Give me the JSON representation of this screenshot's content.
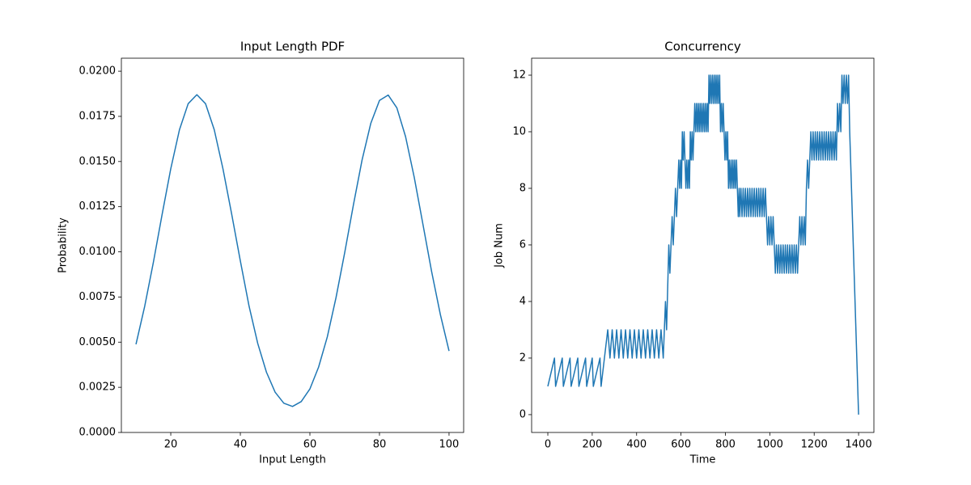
{
  "chart_data": [
    {
      "type": "line",
      "title": "Input Length PDF",
      "x_label": "Input Length",
      "y_label": "Probability",
      "color": "#1f77b4",
      "x": [
        10,
        12.5,
        15,
        17.5,
        20,
        22.5,
        25,
        27.5,
        30,
        32.5,
        35,
        37.5,
        40,
        42.5,
        45,
        47.5,
        50,
        52.5,
        55,
        57.5,
        60,
        62.5,
        65,
        67.5,
        70,
        72.5,
        75,
        77.5,
        80,
        82.5,
        85,
        87.5,
        90,
        92.5,
        95,
        97.5,
        100
      ],
      "values": [
        0.00488,
        0.00698,
        0.00942,
        0.01206,
        0.0146,
        0.01676,
        0.0182,
        0.0187,
        0.0182,
        0.01676,
        0.0146,
        0.0121,
        0.0095,
        0.007,
        0.00493,
        0.00334,
        0.00223,
        0.00162,
        0.00144,
        0.00171,
        0.00241,
        0.00362,
        0.00529,
        0.00746,
        0.00995,
        0.01259,
        0.01509,
        0.01711,
        0.01838,
        0.01868,
        0.01797,
        0.01638,
        0.01412,
        0.01152,
        0.0089,
        0.00653,
        0.00451
      ],
      "xlim": [
        5.8,
        104.2
      ],
      "ylim": [
        0,
        0.02072
      ],
      "xticks": [
        20,
        40,
        60,
        80,
        100
      ],
      "yticks": [
        {
          "value": 0,
          "label": "0.0000"
        },
        {
          "value": 0.0025,
          "label": "0.0025"
        },
        {
          "value": 0.005,
          "label": "0.0050"
        },
        {
          "value": 0.0075,
          "label": "0.0075"
        },
        {
          "value": 0.01,
          "label": "0.0100"
        },
        {
          "value": 0.0125,
          "label": "0.0125"
        },
        {
          "value": 0.015,
          "label": "0.0150"
        },
        {
          "value": 0.0175,
          "label": "0.0175"
        },
        {
          "value": 0.02,
          "label": "0.0200"
        }
      ]
    },
    {
      "type": "line",
      "title": "Concurrency",
      "x_label": "Time",
      "y_label": "Job Num",
      "color": "#1f77b4",
      "x": [
        0,
        30,
        35,
        65,
        70,
        100,
        105,
        135,
        140,
        170,
        175,
        200,
        205,
        235,
        240,
        255,
        270,
        280,
        290,
        300,
        310,
        320,
        330,
        340,
        350,
        360,
        370,
        380,
        390,
        400,
        410,
        420,
        430,
        440,
        450,
        460,
        470,
        480,
        490,
        500,
        510,
        520,
        525,
        530,
        535,
        545,
        550,
        555,
        560,
        565,
        570,
        575,
        580,
        585,
        590,
        594,
        598,
        602,
        606,
        610,
        614,
        618,
        622,
        626,
        630,
        634,
        638,
        642,
        646,
        650,
        654,
        658,
        662,
        666,
        670,
        674,
        678,
        682,
        686,
        690,
        694,
        698,
        702,
        706,
        710,
        714,
        718,
        722,
        726,
        730,
        734,
        738,
        742,
        746,
        750,
        754,
        758,
        762,
        766,
        770,
        774,
        778,
        782,
        786,
        790,
        794,
        798,
        802,
        806,
        810,
        814,
        818,
        822,
        826,
        830,
        834,
        838,
        842,
        846,
        850,
        854,
        858,
        862,
        865,
        870,
        875,
        880,
        885,
        890,
        895,
        900,
        905,
        910,
        915,
        920,
        925,
        930,
        935,
        940,
        945,
        950,
        955,
        960,
        965,
        970,
        975,
        980,
        985,
        990,
        995,
        1000,
        1005,
        1010,
        1015,
        1020,
        1025,
        1030,
        1035,
        1040,
        1045,
        1050,
        1055,
        1060,
        1065,
        1070,
        1075,
        1080,
        1085,
        1090,
        1095,
        1100,
        1105,
        1110,
        1115,
        1120,
        1125,
        1130,
        1135,
        1140,
        1145,
        1150,
        1155,
        1160,
        1165,
        1170,
        1175,
        1180,
        1185,
        1190,
        1195,
        1200,
        1205,
        1210,
        1215,
        1220,
        1225,
        1230,
        1235,
        1240,
        1245,
        1250,
        1255,
        1260,
        1265,
        1270,
        1275,
        1280,
        1285,
        1290,
        1295,
        1300,
        1305,
        1310,
        1315,
        1320,
        1325,
        1330,
        1335,
        1340,
        1345,
        1350,
        1355,
        1360,
        1400
      ],
      "values": [
        1,
        2,
        1,
        2,
        1,
        2,
        1,
        2,
        1,
        2,
        1,
        2,
        1,
        2,
        1,
        2,
        3,
        2,
        3,
        2,
        3,
        2,
        3,
        2,
        3,
        2,
        3,
        2,
        3,
        2,
        3,
        2,
        3,
        2,
        3,
        2,
        3,
        2,
        3,
        2,
        3,
        2,
        3,
        4,
        3,
        6,
        5,
        6,
        7,
        6,
        7,
        8,
        7,
        8,
        9,
        8,
        9,
        8,
        10,
        9,
        10,
        9,
        8,
        9,
        8,
        9,
        8,
        10,
        9,
        10,
        9,
        10,
        11,
        10,
        11,
        10,
        11,
        10,
        11,
        10,
        11,
        10,
        11,
        10,
        11,
        10,
        11,
        10,
        12,
        11,
        12,
        11,
        12,
        11,
        12,
        11,
        12,
        11,
        12,
        11,
        12,
        10,
        11,
        10,
        11,
        10,
        9,
        10,
        9,
        10,
        8,
        9,
        8,
        9,
        8,
        9,
        8,
        9,
        8,
        9,
        8,
        7,
        8,
        7,
        8,
        7,
        8,
        7,
        8,
        7,
        8,
        7,
        8,
        7,
        8,
        7,
        8,
        7,
        8,
        7,
        8,
        7,
        8,
        7,
        8,
        7,
        8,
        7,
        6,
        7,
        6,
        7,
        6,
        7,
        6,
        5,
        6,
        5,
        6,
        5,
        6,
        5,
        6,
        5,
        6,
        5,
        6,
        5,
        6,
        5,
        6,
        5,
        6,
        5,
        6,
        5,
        6,
        7,
        6,
        7,
        6,
        7,
        6,
        8,
        9,
        8,
        9,
        10,
        9,
        10,
        9,
        10,
        9,
        10,
        9,
        10,
        9,
        10,
        9,
        10,
        9,
        10,
        9,
        10,
        9,
        10,
        9,
        10,
        9,
        10,
        9,
        11,
        10,
        11,
        10,
        12,
        11,
        12,
        11,
        12,
        11,
        12,
        10,
        0
      ],
      "xlim": [
        -73,
        1469
      ],
      "ylim": [
        -0.63,
        12.6
      ],
      "xticks": [
        0,
        200,
        400,
        600,
        800,
        1000,
        1200,
        1400
      ],
      "yticks": [
        0,
        2,
        4,
        6,
        8,
        10,
        12
      ]
    }
  ]
}
